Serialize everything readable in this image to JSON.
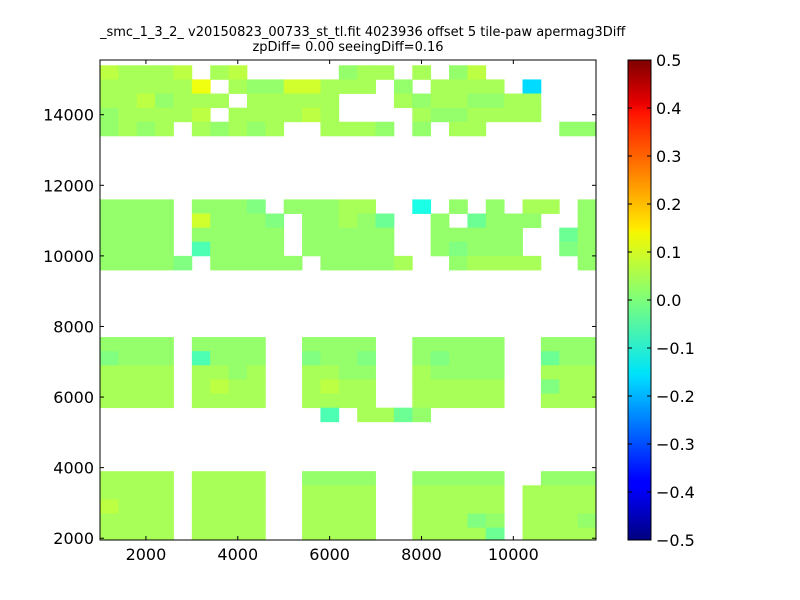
{
  "chart_data": {
    "type": "heatmap",
    "title_line1": "_smc_1_3_2_ v20150823_00733_st_tl.fit 4023936 offset 5 tile-paw apermag3Diff",
    "title_line2": "zpDiff= 0.00 seeingDiff=0.16",
    "xlabel": "",
    "ylabel": "",
    "xlim": [
      1000,
      11800
    ],
    "ylim": [
      1950,
      15550
    ],
    "x_ticks": [
      2000,
      4000,
      6000,
      8000,
      10000
    ],
    "y_ticks": [
      2000,
      4000,
      6000,
      8000,
      10000,
      12000,
      14000
    ],
    "colorbar": {
      "colormap": "jet",
      "vmin": -0.5,
      "vmax": 0.5,
      "ticks": [
        0.5,
        0.4,
        0.3,
        0.2,
        0.1,
        0.0,
        -0.1,
        -0.2,
        -0.3,
        -0.4,
        -0.5
      ],
      "tick_labels": [
        "0.5",
        "0.4",
        "0.3",
        "0.2",
        "0.1",
        "0.0",
        "−0.1",
        "−0.2",
        "−0.3",
        "−0.4",
        "−0.5"
      ]
    },
    "cell_size": [
      400,
      400
    ],
    "x_columns": [
      1000,
      1400,
      1800,
      2200,
      2600,
      3000,
      3400,
      3800,
      4200,
      4600,
      5000,
      5400,
      5800,
      6200,
      6600,
      7000,
      7400,
      7800,
      8200,
      8600,
      9000,
      9400,
      9800,
      10200,
      10600,
      11000,
      11400
    ],
    "y_rows": [
      15400,
      15000,
      14600,
      14200,
      13800,
      11600,
      11200,
      10800,
      10400,
      10000,
      7700,
      7300,
      6900,
      6500,
      6100,
      5700,
      3900,
      3500,
      3100,
      2700,
      2300,
      1900
    ],
    "grid_note": "rows listed top to bottom; '.' = no data; digits 0-9 map to apermag3Diff values in value_codes",
    "value_codes": [
      0.11,
      0.08,
      0.06,
      0.04,
      0.02,
      0.0,
      -0.02,
      -0.05,
      -0.1,
      -0.16
    ],
    "grid": [
      "23332.32.....433.3.42.......2...3.3.2.....2332.",
      "333330.34411333.4.3333.9.....3333.",
      "3324333.33333...34334433....3332.",
      "433332.333323....3443333.....443333",
      "4343.34343..3334.4.33....44333",
      "4444.4445.44433..8.4.4.33.44443",
      "4444.14445.44346..4.6444..44434",
      "4444.44444.44444..44444..64443",
      "4444.74444.44444..45444..54444",
      "44445.44444.44443..43333..43444",
      "4444.4444..4444..44444..44444",
      "5444.7444..5445..45444..64444",
      "3333.3343..3344..34444..33333",
      "3333.3233..3233..33333..53333",
      "3333.3333..3333..33333..33333",
      "............7.3364.........4.",
      "3333.3333..4444..44444..4444",
      "3333.3333..3333..33333.33333",
      "2333.3333..3333..33333.33334",
      "3333.3333..3333..33354.33343",
      "3333.3333..3333..33336.33333",
      "3333.3333..3333..33333.33333"
    ]
  }
}
